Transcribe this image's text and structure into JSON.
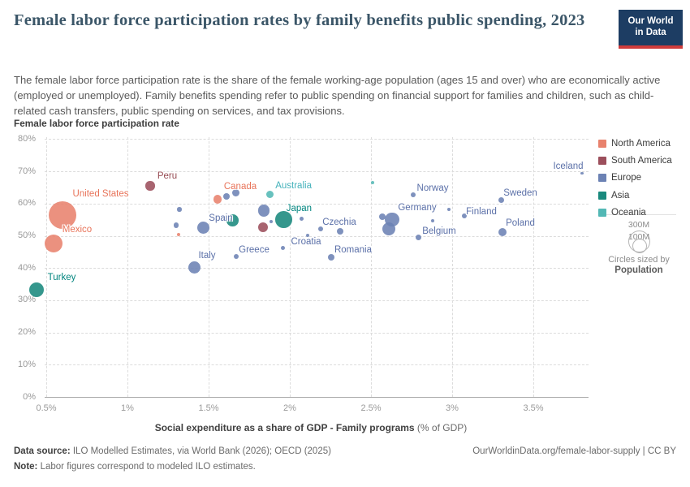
{
  "header": {
    "title": "Female labor force participation rates by family benefits public spending, 2023",
    "subtitle": "The female labor force participation rate is the share of the female working-age population (ages 15 and over) who are economically active (employed or unemployed). Family benefits spending refer to public spending on financial support for families and children, such as child-related cash transfers, public spending on services, and tax provisions.",
    "logo_line1": "Our World",
    "logo_line2": "in Data"
  },
  "axes": {
    "y_axis_title": "Female labor force participation rate",
    "x_axis_title_bold": "Social expenditure as a share of GDP - Family programs",
    "x_axis_title_unit": " (% of GDP)"
  },
  "legend": {
    "items": [
      {
        "label": "North America",
        "color": "#e8826d"
      },
      {
        "label": "South America",
        "color": "#9c4f5c"
      },
      {
        "label": "Europe",
        "color": "#6c82b4"
      },
      {
        "label": "Asia",
        "color": "#19897d"
      },
      {
        "label": "Oceania",
        "color": "#53b8b5"
      }
    ],
    "size_legend": {
      "big_label": "300M",
      "small_label": "100M",
      "caption_line1": "Circles sized by",
      "caption_line2": "Population"
    }
  },
  "chart_data": {
    "type": "scatter",
    "title": "Female labor force participation rates by family benefits public spending, 2023",
    "xlabel": "Social expenditure as a share of GDP - Family programs (% of GDP)",
    "ylabel": "Female labor force participation rate",
    "xlim": [
      0.4,
      3.85
    ],
    "ylim": [
      0,
      80
    ],
    "x_ticks": [
      0.5,
      1,
      1.5,
      2,
      2.5,
      3,
      3.5
    ],
    "y_ticks": [
      0,
      10,
      20,
      30,
      40,
      50,
      60,
      70,
      80
    ],
    "tick_suffix": "%",
    "grid": true,
    "legend_position": "right",
    "size_by": "Population",
    "series": [
      {
        "name": "North America",
        "color": "#e8826d",
        "label_color": "#e8745a",
        "points": [
          {
            "label": "United States",
            "x": 0.6,
            "y": 56.5,
            "r": 17,
            "ldx": 47,
            "ldy": -26
          },
          {
            "label": "Mexico",
            "x": 0.545,
            "y": 47.7,
            "r": 11,
            "ldx": 29,
            "ldy": -17
          },
          {
            "label": "Canada",
            "x": 1.555,
            "y": 61.4,
            "r": 5.3,
            "ldx": 28,
            "ldy": -15
          },
          {
            "x": 1.315,
            "y": 50.3,
            "r": 2.1
          }
        ]
      },
      {
        "name": "South America",
        "color": "#9c4f5c",
        "label_color": "#964a52",
        "points": [
          {
            "label": "Peru",
            "x": 1.14,
            "y": 65.5,
            "r": 5.6,
            "ldx": 21,
            "ldy": -12
          },
          {
            "x": 1.835,
            "y": 52.6,
            "r": 6.1
          }
        ]
      },
      {
        "name": "Europe",
        "color": "#6c82b4",
        "label_color": "#5b70a8",
        "points": [
          {
            "label": "Spain",
            "x": 1.465,
            "y": 52.5,
            "r": 7.5,
            "ldx": 22,
            "ldy": -12
          },
          {
            "label": "Italy",
            "x": 1.41,
            "y": 40.1,
            "r": 7.5,
            "ldx": 16,
            "ldy": -15
          },
          {
            "label": "Greece",
            "x": 1.67,
            "y": 43.5,
            "r": 3.0,
            "ldx": 22,
            "ldy": -8
          },
          {
            "label": "Croatia",
            "x": 1.955,
            "y": 46.2,
            "r": 2.5,
            "ldx": 29,
            "ldy": -8
          },
          {
            "label": "Czechia",
            "x": 2.31,
            "y": 51.4,
            "r": 4.3,
            "ldx": -1,
            "ldy": -11
          },
          {
            "label": "Romania",
            "x": 2.255,
            "y": 43.3,
            "r": 4.3,
            "ldx": 27,
            "ldy": -9
          },
          {
            "label": "Norway",
            "x": 2.76,
            "y": 62.6,
            "r": 3.0,
            "ldx": 24,
            "ldy": -8
          },
          {
            "label": "Germany",
            "x": 2.63,
            "y": 55.1,
            "r": 8.7,
            "ldx": 31,
            "ldy": -14
          },
          {
            "label": "Belgium",
            "x": 2.79,
            "y": 49.4,
            "r": 3.5,
            "ldx": 26,
            "ldy": -8
          },
          {
            "label": "Finland",
            "x": 3.075,
            "y": 56.2,
            "r": 3.0,
            "ldx": 21,
            "ldy": -5
          },
          {
            "label": "Sweden",
            "x": 3.3,
            "y": 61.1,
            "r": 3.5,
            "ldx": 24,
            "ldy": -8
          },
          {
            "label": "Poland",
            "x": 3.31,
            "y": 51.2,
            "r": 5.0,
            "ldx": 22,
            "ldy": -11
          },
          {
            "label": "Iceland",
            "x": 3.8,
            "y": 69.4,
            "r": 1.8,
            "ldx": -17,
            "ldy": -8
          },
          {
            "x": 1.32,
            "y": 58.2,
            "r": 2.7
          },
          {
            "x": 1.3,
            "y": 53.2,
            "r": 3.3
          },
          {
            "x": 1.61,
            "y": 62.3,
            "r": 4.0
          },
          {
            "x": 1.665,
            "y": 63.3,
            "r": 4.5
          },
          {
            "x": 1.84,
            "y": 57.9,
            "r": 7.4
          },
          {
            "x": 1.885,
            "y": 54.3,
            "r": 2.0
          },
          {
            "x": 2.07,
            "y": 55.2,
            "r": 2.5
          },
          {
            "x": 2.19,
            "y": 52.1,
            "r": 3.3
          },
          {
            "x": 2.11,
            "y": 50.2,
            "r": 2.0
          },
          {
            "x": 2.61,
            "y": 52.1,
            "r": 8.0
          },
          {
            "x": 2.57,
            "y": 55.9,
            "r": 4.3
          },
          {
            "x": 2.98,
            "y": 58.2,
            "r": 2.0
          },
          {
            "x": 2.88,
            "y": 54.6,
            "r": 2.0
          }
        ]
      },
      {
        "name": "Asia",
        "color": "#19897d",
        "label_color": "#00847e",
        "points": [
          {
            "label": "Turkey",
            "x": 0.44,
            "y": 33.2,
            "r": 9.0,
            "ldx": 31,
            "ldy": -15
          },
          {
            "label": "Japan",
            "x": 1.962,
            "y": 55.0,
            "r": 10.3,
            "ldx": 19,
            "ldy": -14
          },
          {
            "x": 1.648,
            "y": 54.8,
            "r": 7.3
          }
        ]
      },
      {
        "name": "Oceania",
        "color": "#53b8b5",
        "label_color": "#45b2bb",
        "points": [
          {
            "label": "Australia",
            "x": 1.878,
            "y": 62.8,
            "r": 4.8,
            "ldx": 29,
            "ldy": -11
          },
          {
            "x": 2.51,
            "y": 66.5,
            "r": 2.1
          }
        ]
      }
    ]
  },
  "footer": {
    "data_source_label": "Data source:",
    "data_source_text": " ILO Modelled Estimates, via World Bank (2026); OECD (2025)",
    "link_text": "OurWorldinData.org/female-labor-supply | CC BY",
    "note_label": "Note:",
    "note_text": " Labor figures correspond to modeled ILO estimates."
  }
}
